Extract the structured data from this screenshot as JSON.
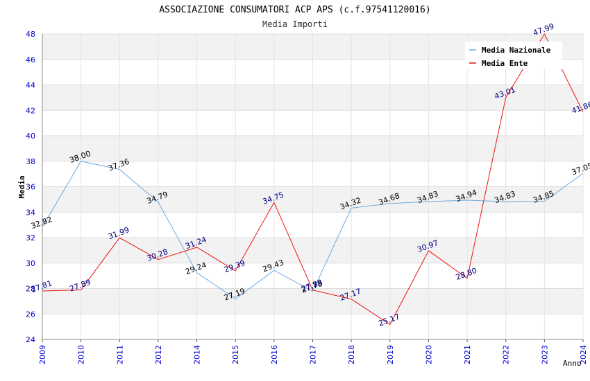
{
  "chart_data": {
    "type": "line",
    "title": "ASSOCIAZIONE CONSUMATORI ACP APS (c.f.97541120016)",
    "subtitle": "Media Importi",
    "xlabel": "Anno",
    "ylabel": "Media",
    "ylim": [
      24,
      48
    ],
    "yticks": [
      "24",
      "26",
      "28",
      "30",
      "32",
      "34",
      "36",
      "38",
      "40",
      "42",
      "44",
      "46",
      "48"
    ],
    "categories": [
      "2009",
      "2010",
      "2011",
      "2012",
      "2014",
      "2015",
      "2016",
      "2017",
      "2018",
      "2019",
      "2020",
      "2021",
      "2022",
      "2023",
      "2024"
    ],
    "legend_position": "top-right",
    "series": [
      {
        "name": "Media Nazionale",
        "color": "#6fa8dc",
        "label_color": "#000000",
        "values": [
          32.82,
          38.0,
          37.36,
          34.79,
          29.24,
          27.19,
          29.43,
          27.78,
          34.32,
          34.68,
          34.83,
          34.94,
          34.83,
          34.85,
          37.05
        ],
        "labels": [
          "32.82",
          "38.00",
          "37.36",
          "34.79",
          "29.24",
          "27.19",
          "29.43",
          "27.78",
          "34.32",
          "34.68",
          "34.83",
          "34.94",
          "34.83",
          "34.85",
          "37.05"
        ]
      },
      {
        "name": "Media Ente",
        "color": "#ee1111",
        "label_color": "#000080",
        "values": [
          27.81,
          27.89,
          31.99,
          30.28,
          31.24,
          29.39,
          34.75,
          27.88,
          27.17,
          25.17,
          30.97,
          28.8,
          43.01,
          47.99,
          41.86
        ],
        "labels": [
          "27.81",
          "27.89",
          "31.99",
          "30.28",
          "31.24",
          "29.39",
          "34.75",
          "27.88",
          "27.17",
          "25.17",
          "30.97",
          "28.80",
          "43.01",
          "47.99",
          "41.86"
        ]
      }
    ]
  }
}
